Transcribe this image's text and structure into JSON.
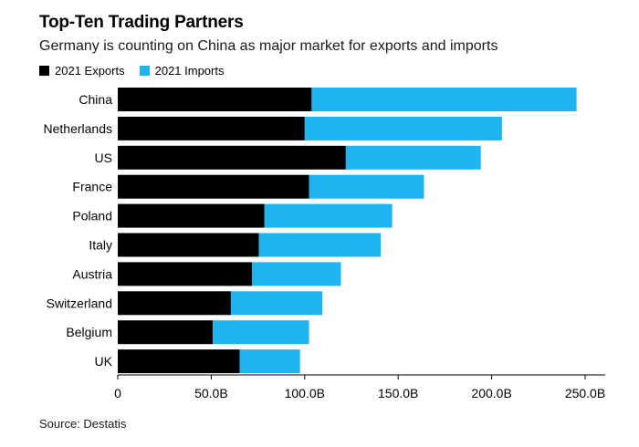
{
  "title": "Top-Ten Trading Partners",
  "subtitle": "Germany is counting on China as major market for exports and imports",
  "legend": [
    {
      "label": "2021 Exports",
      "color": "#000000"
    },
    {
      "label": "2021 Imports",
      "color": "#1fb4f0"
    }
  ],
  "source": "Source: Destatis",
  "chart_data": {
    "type": "bar",
    "orientation": "horizontal",
    "stacked": true,
    "title": "Top-Ten Trading Partners",
    "subtitle": "Germany is counting on China as major market for exports and imports",
    "categories": [
      "China",
      "Netherlands",
      "US",
      "France",
      "Poland",
      "Italy",
      "Austria",
      "Switzerland",
      "Belgium",
      "UK"
    ],
    "series": [
      {
        "name": "2021 Exports",
        "color": "#000000",
        "values": [
          103.7,
          100.0,
          122.0,
          102.3,
          78.5,
          75.5,
          71.9,
          60.5,
          50.8,
          65.2
        ]
      },
      {
        "name": "2021 Imports",
        "color": "#1fb4f0",
        "values": [
          141.7,
          105.5,
          72.2,
          61.5,
          68.3,
          65.2,
          47.5,
          48.9,
          51.5,
          32.3
        ]
      }
    ],
    "xlim": [
      0,
      250
    ],
    "xticks": [
      0,
      50,
      100,
      150,
      200,
      250
    ],
    "xtick_labels": [
      "0",
      "50.0B",
      "100.0B",
      "150.0B",
      "200.0B",
      "250.0B"
    ],
    "xlabel": "",
    "ylabel": "",
    "grid": false,
    "legend_position": "top-left"
  }
}
